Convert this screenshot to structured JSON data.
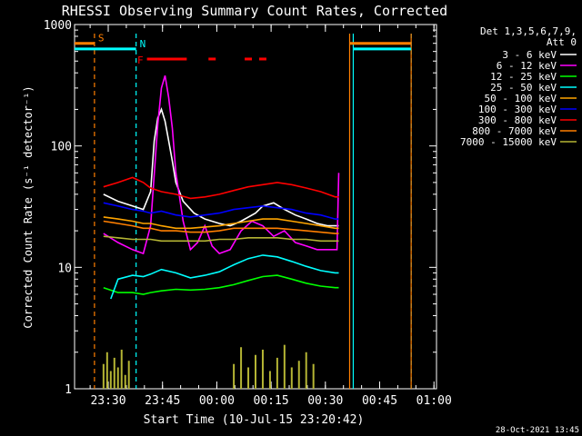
{
  "chart_data": {
    "type": "line",
    "title": "RHESSI Observing Summary Count Rates, Corrected",
    "xlabel": "Start Time (10-Jul-15 23:20:42)",
    "ylabel": "Corrected Count Rate (s⁻¹ detector⁻¹)",
    "yscale": "log",
    "ylim": [
      1,
      1000
    ],
    "xlim_minutes": [
      0,
      100
    ],
    "y_ticks": [
      "1",
      "10",
      "100",
      "1000"
    ],
    "x_ticks": [
      {
        "label": "23:30",
        "minutes": 9.3
      },
      {
        "label": "23:45",
        "minutes": 24.3
      },
      {
        "label": "00:00",
        "minutes": 39.3
      },
      {
        "label": "00:15",
        "minutes": 54.3
      },
      {
        "label": "00:30",
        "minutes": 69.3
      },
      {
        "label": "00:45",
        "minutes": 84.3
      },
      {
        "label": "01:00",
        "minutes": 99.3
      }
    ],
    "legend_header": [
      "Det 1,3,5,6,7,9,",
      "Att 0"
    ],
    "legend_placement": "outside-right",
    "series": [
      {
        "name": "3 - 6 keV",
        "color": "#ffffff",
        "values": [
          [
            8,
            40
          ],
          [
            12,
            35
          ],
          [
            16,
            32
          ],
          [
            19,
            30
          ],
          [
            21,
            42
          ],
          [
            22,
            110
          ],
          [
            23,
            170
          ],
          [
            24,
            200
          ],
          [
            25,
            160
          ],
          [
            26,
            110
          ],
          [
            27,
            75
          ],
          [
            28,
            50
          ],
          [
            30,
            35
          ],
          [
            33,
            28
          ],
          [
            36,
            25
          ],
          [
            40,
            23
          ],
          [
            43,
            22
          ],
          [
            46,
            24
          ],
          [
            50,
            28
          ],
          [
            52,
            32
          ],
          [
            55,
            34
          ],
          [
            58,
            30
          ],
          [
            61,
            27
          ],
          [
            64,
            25
          ],
          [
            67,
            23
          ],
          [
            70,
            22
          ],
          [
            73,
            22
          ]
        ]
      },
      {
        "name": "6 - 12 keV",
        "color": "#ff00ff",
        "values": [
          [
            8,
            19
          ],
          [
            12,
            16
          ],
          [
            16,
            14
          ],
          [
            19,
            13
          ],
          [
            21,
            22
          ],
          [
            23,
            150
          ],
          [
            24,
            300
          ],
          [
            25,
            380
          ],
          [
            26,
            250
          ],
          [
            27,
            140
          ],
          [
            28,
            60
          ],
          [
            30,
            24
          ],
          [
            32,
            14
          ],
          [
            34,
            16
          ],
          [
            36,
            22
          ],
          [
            38,
            15
          ],
          [
            40,
            13
          ],
          [
            43,
            14
          ],
          [
            46,
            20
          ],
          [
            49,
            24
          ],
          [
            52,
            22
          ],
          [
            55,
            18
          ],
          [
            58,
            20
          ],
          [
            61,
            16
          ],
          [
            64,
            15
          ],
          [
            67,
            14
          ],
          [
            70,
            14
          ],
          [
            72.5,
            14
          ],
          [
            73,
            60
          ]
        ]
      },
      {
        "name": "12 - 25 keV",
        "color": "#00ff00",
        "values": [
          [
            8,
            6.8
          ],
          [
            12,
            6.2
          ],
          [
            16,
            6.2
          ],
          [
            19,
            6
          ],
          [
            21,
            6.2
          ],
          [
            24,
            6.4
          ],
          [
            28,
            6.6
          ],
          [
            32,
            6.5
          ],
          [
            36,
            6.6
          ],
          [
            40,
            6.8
          ],
          [
            44,
            7.2
          ],
          [
            48,
            7.8
          ],
          [
            52,
            8.4
          ],
          [
            56,
            8.6
          ],
          [
            60,
            8
          ],
          [
            64,
            7.4
          ],
          [
            68,
            7
          ],
          [
            72,
            6.8
          ],
          [
            73,
            6.8
          ]
        ]
      },
      {
        "name": "25 - 50 keV",
        "color": "#00ffff",
        "values": [
          [
            10,
            5.5
          ],
          [
            12,
            8
          ],
          [
            16,
            8.6
          ],
          [
            19,
            8.4
          ],
          [
            21,
            8.8
          ],
          [
            24,
            9.6
          ],
          [
            28,
            9
          ],
          [
            32,
            8.2
          ],
          [
            36,
            8.6
          ],
          [
            40,
            9.2
          ],
          [
            44,
            10.5
          ],
          [
            48,
            11.8
          ],
          [
            52,
            12.6
          ],
          [
            56,
            12.2
          ],
          [
            60,
            11.2
          ],
          [
            64,
            10.2
          ],
          [
            68,
            9.4
          ],
          [
            72,
            9
          ],
          [
            73,
            9
          ]
        ]
      },
      {
        "name": "50 - 100 keV",
        "color": "#ffa500",
        "values": [
          [
            8,
            26
          ],
          [
            12,
            25
          ],
          [
            16,
            24
          ],
          [
            19,
            23
          ],
          [
            21,
            23
          ],
          [
            24,
            22
          ],
          [
            28,
            21
          ],
          [
            32,
            21
          ],
          [
            36,
            21.5
          ],
          [
            40,
            22
          ],
          [
            44,
            23
          ],
          [
            48,
            24
          ],
          [
            52,
            25
          ],
          [
            56,
            25
          ],
          [
            60,
            24
          ],
          [
            64,
            23
          ],
          [
            68,
            22
          ],
          [
            72,
            21
          ],
          [
            73,
            21
          ]
        ]
      },
      {
        "name": "100 - 300 keV",
        "color": "#0000ff",
        "values": [
          [
            8,
            34
          ],
          [
            12,
            32
          ],
          [
            16,
            30
          ],
          [
            19,
            29
          ],
          [
            21,
            28
          ],
          [
            24,
            29
          ],
          [
            28,
            27
          ],
          [
            32,
            26
          ],
          [
            36,
            27
          ],
          [
            40,
            28
          ],
          [
            44,
            30
          ],
          [
            48,
            31
          ],
          [
            52,
            32
          ],
          [
            56,
            31
          ],
          [
            60,
            30
          ],
          [
            64,
            28
          ],
          [
            68,
            27
          ],
          [
            72,
            25
          ],
          [
            73,
            25
          ]
        ]
      },
      {
        "name": "300 - 800 keV",
        "color": "#ff0000",
        "values": [
          [
            8,
            46
          ],
          [
            12,
            50
          ],
          [
            16,
            55
          ],
          [
            19,
            50
          ],
          [
            21,
            45
          ],
          [
            24,
            42
          ],
          [
            28,
            40
          ],
          [
            32,
            37
          ],
          [
            36,
            38
          ],
          [
            40,
            40
          ],
          [
            44,
            43
          ],
          [
            48,
            46
          ],
          [
            52,
            48
          ],
          [
            56,
            50
          ],
          [
            60,
            48
          ],
          [
            64,
            45
          ],
          [
            68,
            42
          ],
          [
            72,
            38
          ],
          [
            73,
            38
          ]
        ]
      },
      {
        "name": "800 - 7000 keV",
        "color": "#ff7f00",
        "values": [
          [
            8,
            24
          ],
          [
            12,
            23
          ],
          [
            16,
            22
          ],
          [
            19,
            21
          ],
          [
            21,
            21
          ],
          [
            24,
            20
          ],
          [
            28,
            20
          ],
          [
            32,
            19.5
          ],
          [
            36,
            19.5
          ],
          [
            40,
            20
          ],
          [
            44,
            21
          ],
          [
            48,
            21
          ],
          [
            52,
            21
          ],
          [
            56,
            21
          ],
          [
            60,
            20.5
          ],
          [
            64,
            20
          ],
          [
            68,
            19.5
          ],
          [
            72,
            19
          ],
          [
            73,
            19
          ]
        ]
      },
      {
        "name": "7000 - 15000 keV",
        "color": "#b5b534",
        "values": [
          [
            8,
            18
          ],
          [
            12,
            17.5
          ],
          [
            16,
            17
          ],
          [
            19,
            17
          ],
          [
            21,
            17
          ],
          [
            24,
            16.5
          ],
          [
            28,
            16.5
          ],
          [
            32,
            16.5
          ],
          [
            36,
            16.5
          ],
          [
            40,
            17
          ],
          [
            44,
            17
          ],
          [
            48,
            17.5
          ],
          [
            52,
            17.5
          ],
          [
            56,
            17.5
          ],
          [
            60,
            17
          ],
          [
            64,
            17
          ],
          [
            68,
            16.5
          ],
          [
            72,
            16.5
          ],
          [
            73,
            16.5
          ]
        ]
      }
    ],
    "bursts": [
      {
        "color": "#b5b534",
        "values": [
          [
            8,
            1.6
          ],
          [
            9,
            2
          ],
          [
            10,
            1.4
          ],
          [
            11,
            1.8
          ],
          [
            12,
            1.5
          ],
          [
            13,
            2.1
          ],
          [
            14,
            1.3
          ],
          [
            15,
            1.7
          ],
          [
            44,
            1.6
          ],
          [
            46,
            2.2
          ],
          [
            48,
            1.5
          ],
          [
            50,
            1.9
          ],
          [
            52,
            2.1
          ],
          [
            54,
            1.4
          ],
          [
            56,
            1.8
          ],
          [
            58,
            2.3
          ],
          [
            60,
            1.5
          ],
          [
            62,
            1.7
          ],
          [
            64,
            2
          ],
          [
            66,
            1.6
          ]
        ]
      }
    ],
    "flag_bars": [
      {
        "label": "S",
        "color": "#ff7f00",
        "y_value": 700,
        "x_ranges": [
          [
            0,
            5.5
          ],
          [
            76,
            93
          ]
        ]
      },
      {
        "label": "N",
        "color": "#00ffff",
        "y_value": 630,
        "x_ranges": [
          [
            0,
            17
          ],
          [
            77,
            93
          ]
        ]
      },
      {
        "label": "F",
        "color": "#ff0000",
        "y_value": 520,
        "x_ranges": [
          [
            20,
            31
          ],
          [
            37,
            39
          ],
          [
            47,
            49
          ],
          [
            51,
            53
          ]
        ]
      }
    ],
    "vertical_markers": [
      {
        "color": "#ff7f00",
        "x_minutes": 5.5,
        "style": "dashed"
      },
      {
        "color": "#00ffff",
        "x_minutes": 17,
        "style": "dashed"
      },
      {
        "color": "#ff7f00",
        "x_minutes": 76,
        "style": "solid"
      },
      {
        "color": "#00ffff",
        "x_minutes": 77,
        "style": "solid"
      },
      {
        "color": "#00ffff",
        "x_minutes": 93,
        "style": "dashed"
      },
      {
        "color": "#ff7f00",
        "x_minutes": 93,
        "style": "solid"
      }
    ],
    "grid": false
  },
  "footer_timestamp": "28-Oct-2021 13:45",
  "colors": {
    "background": "#000000",
    "axis": "#ffffff",
    "text": "#ffffff"
  }
}
